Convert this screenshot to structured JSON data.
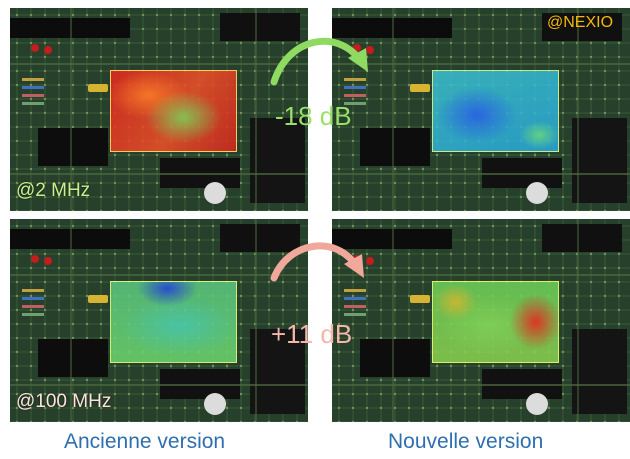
{
  "panels": {
    "top_left": {
      "label": "@2 MHz"
    },
    "bottom_left": {
      "label": "@100 MHz"
    }
  },
  "watermark": "@NEXIO",
  "comparisons": [
    {
      "delta": "-18 dB",
      "color": "#9bdf6b"
    },
    {
      "delta": "+11 dB",
      "color": "#f5b6aa"
    }
  ],
  "captions": {
    "old": "Ancienne version",
    "new": "Nouvelle version"
  }
}
